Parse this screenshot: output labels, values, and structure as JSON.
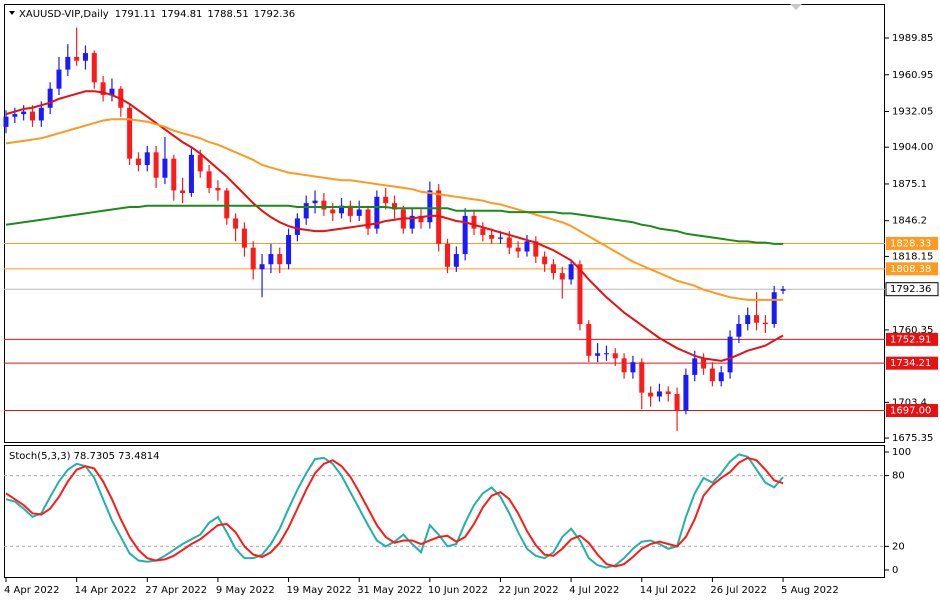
{
  "chart_data": [
    {
      "type": "candlestick",
      "title": "XAUUSD-VIP,Daily",
      "open": [
        1920,
        1928,
        1930,
        1932,
        1925,
        1935,
        1950,
        1965,
        1975,
        1972,
        1978,
        1955,
        1945,
        1950,
        1935,
        1895,
        1890,
        1900,
        1880,
        1895,
        1870,
        1868,
        1898,
        1885,
        1872,
        1870,
        1848,
        1840,
        1825,
        1808,
        1812,
        1820,
        1812,
        1835,
        1848,
        1860,
        1862,
        1855,
        1852,
        1858,
        1850,
        1855,
        1840,
        1865,
        1860,
        1855,
        1840,
        1850,
        1845,
        1870,
        1828,
        1810,
        1820,
        1850,
        1840,
        1835,
        1832,
        1833,
        1825,
        1822,
        1830,
        1818,
        1812,
        1805,
        1800,
        1812,
        1765,
        1740,
        1742,
        1742,
        1738,
        1727,
        1735,
        1711,
        1708,
        1712,
        1710,
        1697,
        1725,
        1738,
        1730,
        1720,
        1727,
        1755,
        1765,
        1772,
        1766,
        1765,
        1791.11
      ],
      "high": [
        1933,
        1935,
        1937,
        1937,
        1940,
        1955,
        1975,
        1985,
        1998,
        1984,
        1980,
        1960,
        1958,
        1952,
        1937,
        1900,
        1905,
        1905,
        1912,
        1898,
        1880,
        1903,
        1902,
        1890,
        1878,
        1872,
        1852,
        1845,
        1830,
        1820,
        1828,
        1825,
        1840,
        1852,
        1866,
        1870,
        1868,
        1860,
        1864,
        1862,
        1862,
        1858,
        1870,
        1872,
        1866,
        1858,
        1856,
        1855,
        1877,
        1875,
        1832,
        1826,
        1856,
        1855,
        1845,
        1840,
        1838,
        1838,
        1830,
        1835,
        1834,
        1822,
        1816,
        1810,
        1815,
        1815,
        1768,
        1750,
        1748,
        1746,
        1742,
        1740,
        1738,
        1716,
        1718,
        1716,
        1715,
        1730,
        1744,
        1742,
        1735,
        1732,
        1760,
        1772,
        1778,
        1790,
        1772,
        1795,
        1794.81
      ],
      "low": [
        1915,
        1923,
        1925,
        1920,
        1920,
        1930,
        1945,
        1960,
        1968,
        1965,
        1950,
        1940,
        1940,
        1928,
        1890,
        1885,
        1885,
        1872,
        1875,
        1862,
        1860,
        1865,
        1880,
        1868,
        1862,
        1843,
        1830,
        1818,
        1800,
        1786,
        1805,
        1805,
        1808,
        1830,
        1843,
        1852,
        1850,
        1846,
        1848,
        1845,
        1846,
        1835,
        1836,
        1855,
        1848,
        1836,
        1836,
        1840,
        1840,
        1822,
        1805,
        1806,
        1815,
        1835,
        1830,
        1828,
        1828,
        1820,
        1817,
        1818,
        1813,
        1806,
        1800,
        1785,
        1796,
        1760,
        1735,
        1735,
        1736,
        1732,
        1722,
        1722,
        1698,
        1700,
        1704,
        1704,
        1681,
        1694,
        1720,
        1725,
        1716,
        1716,
        1722,
        1750,
        1760,
        1760,
        1758,
        1762,
        1788.51
      ],
      "close": [
        1928,
        1930,
        1932,
        1925,
        1935,
        1950,
        1965,
        1975,
        1972,
        1978,
        1955,
        1945,
        1950,
        1935,
        1895,
        1890,
        1900,
        1880,
        1895,
        1870,
        1868,
        1898,
        1885,
        1872,
        1870,
        1848,
        1840,
        1825,
        1808,
        1812,
        1820,
        1812,
        1835,
        1848,
        1860,
        1862,
        1855,
        1852,
        1858,
        1850,
        1855,
        1840,
        1865,
        1860,
        1855,
        1840,
        1850,
        1845,
        1870,
        1828,
        1810,
        1820,
        1850,
        1840,
        1835,
        1832,
        1833,
        1825,
        1822,
        1830,
        1818,
        1812,
        1805,
        1800,
        1812,
        1765,
        1740,
        1742,
        1742,
        1738,
        1727,
        1735,
        1711,
        1708,
        1712,
        1710,
        1697,
        1725,
        1738,
        1730,
        1720,
        1727,
        1755,
        1765,
        1772,
        1766,
        1765,
        1790,
        1792.36
      ],
      "up_color": "#1a1aff",
      "down_color": "#ff1a1a",
      "last_price_color": "#b8b8b8",
      "lines": [
        {
          "color": "#e81010",
          "values": [
            1930,
            1932,
            1934,
            1935,
            1937,
            1939,
            1942,
            1944,
            1946,
            1948,
            1948,
            1947,
            1945,
            1942,
            1938,
            1933,
            1928,
            1923,
            1918,
            1913,
            1908,
            1904,
            1899,
            1893,
            1887,
            1881,
            1874,
            1867,
            1860,
            1854,
            1849,
            1845,
            1842,
            1840,
            1839,
            1838,
            1838,
            1839,
            1840,
            1841,
            1842,
            1843,
            1844,
            1846,
            1847,
            1848,
            1848,
            1849,
            1850,
            1850,
            1848,
            1846,
            1845,
            1843,
            1841,
            1839,
            1837,
            1835,
            1833,
            1831,
            1829,
            1826,
            1823,
            1819,
            1815,
            1808,
            1800,
            1793,
            1786,
            1780,
            1774,
            1769,
            1764,
            1759,
            1754,
            1750,
            1746,
            1743,
            1740,
            1738,
            1737,
            1736,
            1738,
            1741,
            1744,
            1746,
            1748,
            1752,
            1756
          ]
        },
        {
          "color": "#ff9a1f",
          "values": [
            1907,
            1908,
            1909,
            1910,
            1911,
            1913,
            1915,
            1917,
            1919,
            1921,
            1923,
            1925,
            1926,
            1926,
            1926,
            1925,
            1924,
            1922,
            1920,
            1917,
            1915,
            1913,
            1911,
            1908,
            1906,
            1903,
            1900,
            1897,
            1894,
            1890,
            1888,
            1886,
            1884,
            1883,
            1882,
            1881,
            1880,
            1879,
            1878,
            1878,
            1877,
            1876,
            1875,
            1874,
            1873,
            1872,
            1871,
            1869,
            1868,
            1867,
            1866,
            1865,
            1864,
            1863,
            1862,
            1860,
            1859,
            1857,
            1855,
            1853,
            1851,
            1849,
            1847,
            1845,
            1842,
            1838,
            1834,
            1830,
            1826,
            1822,
            1818,
            1814,
            1811,
            1808,
            1805,
            1802,
            1799,
            1797,
            1795,
            1792,
            1790,
            1788,
            1786,
            1785,
            1784,
            1784,
            1784,
            1784,
            1784
          ]
        },
        {
          "color": "#1a8c1a",
          "values": [
            1843,
            1844,
            1845,
            1846,
            1847,
            1848,
            1849,
            1850,
            1851,
            1852,
            1853,
            1854,
            1855,
            1856,
            1857,
            1857,
            1858,
            1858,
            1858,
            1858,
            1858,
            1858,
            1858,
            1858,
            1858,
            1858,
            1858,
            1858,
            1858,
            1858,
            1858,
            1858,
            1858,
            1857,
            1857,
            1857,
            1857,
            1857,
            1857,
            1857,
            1857,
            1857,
            1857,
            1857,
            1856,
            1856,
            1856,
            1856,
            1856,
            1856,
            1856,
            1854,
            1854,
            1854,
            1854,
            1854,
            1854,
            1853,
            1853,
            1853,
            1853,
            1853,
            1853,
            1852,
            1852,
            1851,
            1850,
            1849,
            1848,
            1847,
            1846,
            1845,
            1843,
            1842,
            1840,
            1839,
            1838,
            1836,
            1835,
            1834,
            1833,
            1832,
            1831,
            1830,
            1830,
            1829,
            1829,
            1828,
            1828
          ]
        }
      ],
      "levels": [
        {
          "value": 1828.33,
          "color": "#ff9a1f"
        },
        {
          "value": 1808.38,
          "color": "#ff9a1f"
        },
        {
          "value": 1752.91,
          "color": "#e81010"
        },
        {
          "value": 1734.21,
          "color": "#e81010"
        },
        {
          "value": {
            "value": 1697,
            "label": "1697.00"
          },
          "color": "#e81010"
        }
      ],
      "ylim": [
        1671.45,
        2016.58
      ],
      "yticks": [
        1989.85,
        1960.95,
        1932.05,
        {
          "value": 1904,
          "label": "1904.00"
        },
        1875.1,
        1846.2,
        1818.15,
        1760.35,
        1703.4,
        1675.35
      ]
    },
    {
      "type": "line",
      "title": "Stoch(5,3,3) 78.7305 73.4814",
      "categories": [
        "4 Apr 2022",
        null,
        null,
        null,
        null,
        null,
        null,
        null,
        "14 Apr 2022",
        null,
        null,
        null,
        null,
        null,
        null,
        null,
        "27 Apr 2022",
        null,
        null,
        null,
        null,
        null,
        null,
        null,
        "9 May 2022",
        null,
        null,
        null,
        null,
        null,
        null,
        null,
        "19 May 2022",
        null,
        null,
        null,
        null,
        null,
        null,
        null,
        "31 May 2022",
        null,
        null,
        null,
        null,
        null,
        null,
        null,
        "10 Jun 2022",
        null,
        null,
        null,
        null,
        null,
        null,
        null,
        "22 Jun 2022",
        null,
        null,
        null,
        null,
        null,
        null,
        null,
        "4 Jul 2022",
        null,
        null,
        null,
        null,
        null,
        null,
        null,
        "14 Jul 2022",
        null,
        null,
        null,
        null,
        null,
        null,
        null,
        "26 Jul 2022",
        null,
        null,
        null,
        null,
        null,
        null,
        null,
        "5 Aug 2022"
      ],
      "series": [
        {
          "color": "#20b2aa",
          "values": [
            60,
            58,
            52,
            45,
            48,
            62,
            75,
            85,
            90,
            88,
            78,
            60,
            42,
            28,
            14,
            8,
            7,
            8,
            12,
            17,
            22,
            26,
            30,
            40,
            45,
            32,
            18,
            10,
            10,
            13,
            22,
            35,
            52,
            68,
            82,
            94,
            95,
            90,
            80,
            66,
            52,
            38,
            25,
            20,
            24,
            30,
            22,
            15,
            38,
            30,
            20,
            22,
            40,
            55,
            65,
            70,
            62,
            48,
            32,
            18,
            12,
            10,
            15,
            28,
            35,
            25,
            10,
            4,
            2,
            4,
            10,
            18,
            24,
            25,
            22,
            18,
            20,
            45,
            65,
            78,
            74,
            82,
            92,
            98,
            96,
            85,
            74,
            70,
            78.7305
          ]
        },
        {
          "color": "#ff1a1a",
          "values": [
            65,
            60,
            55,
            48,
            47,
            52,
            62,
            75,
            85,
            88,
            86,
            75,
            60,
            43,
            28,
            17,
            10,
            8,
            9,
            12,
            17,
            22,
            26,
            32,
            38,
            39,
            32,
            20,
            13,
            11,
            15,
            23,
            36,
            52,
            68,
            82,
            90,
            93,
            88,
            79,
            66,
            52,
            38,
            28,
            23,
            25,
            25,
            22,
            25,
            28,
            29,
            24,
            28,
            39,
            53,
            63,
            66,
            60,
            48,
            33,
            21,
            13,
            12,
            18,
            26,
            29,
            23,
            13,
            5,
            3,
            5,
            11,
            18,
            22,
            24,
            22,
            20,
            28,
            43,
            63,
            72,
            78,
            83,
            91,
            95,
            93,
            85,
            76,
            73.4814
          ]
        }
      ],
      "dashed_levels": [
        80,
        20
      ],
      "ylim": [
        -6.8,
        105.1
      ],
      "yticks": [
        100,
        80,
        20,
        0
      ]
    }
  ]
}
